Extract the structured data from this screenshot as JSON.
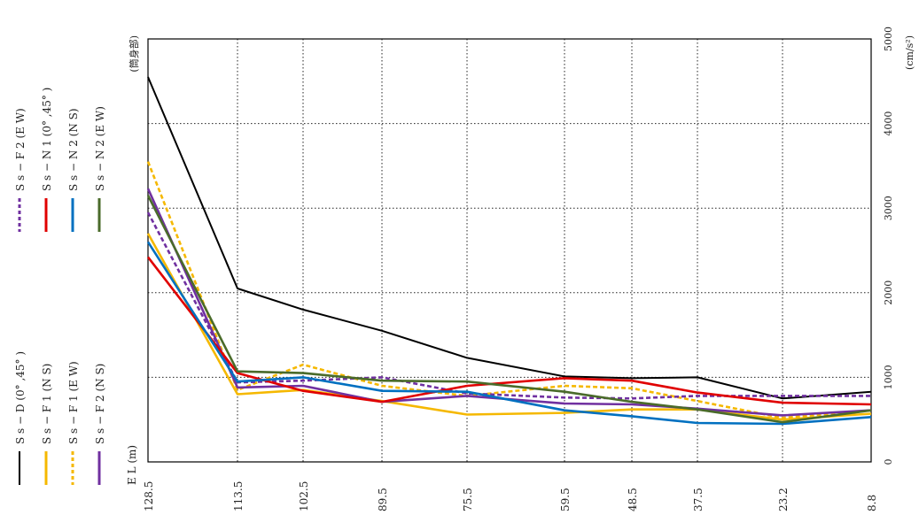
{
  "chart_data": {
    "type": "line",
    "orientation": "rotated",
    "x_axis_label": "E L (m)",
    "x": [
      "128.5",
      "113.5",
      "102.5",
      "89.5",
      "75.5",
      "59.5",
      "48.5",
      "37.5",
      "23.2",
      "8.8"
    ],
    "y_axis_ticks": [
      0,
      1000,
      2000,
      3000,
      4000,
      5000
    ],
    "y_unit": "(cm/s²)",
    "ylim": [
      0,
      5000
    ],
    "section_note": "(筒身部)",
    "grid": true,
    "legend_position": "left",
    "series": [
      {
        "name": "S s − D (0° ,45° )",
        "color": "#000000",
        "dashed": false,
        "values": [
          4550,
          2050,
          1800,
          1550,
          1230,
          1010,
          990,
          1000,
          750,
          830
        ]
      },
      {
        "name": "S s − F 1 (N S)",
        "color": "#f5b800",
        "dashed": false,
        "values": [
          2700,
          800,
          850,
          720,
          560,
          580,
          620,
          620,
          500,
          570
        ]
      },
      {
        "name": "S s − F 1 (E W)",
        "color": "#f5b800",
        "dashed": true,
        "values": [
          3550,
          850,
          1150,
          900,
          780,
          900,
          870,
          720,
          520,
          610
        ]
      },
      {
        "name": "S s − F 2 (N S)",
        "color": "#7030a0",
        "dashed": false,
        "values": [
          3230,
          880,
          900,
          710,
          780,
          690,
          680,
          630,
          550,
          610
        ]
      },
      {
        "name": "S s − F 2 (E W)",
        "color": "#7030a0",
        "dashed": true,
        "values": [
          2950,
          940,
          960,
          1000,
          810,
          760,
          750,
          780,
          780,
          780
        ]
      },
      {
        "name": "S s − N 1 (0° ,45° )",
        "color": "#e00000",
        "dashed": false,
        "values": [
          2420,
          1050,
          840,
          710,
          900,
          990,
          960,
          820,
          700,
          680
        ]
      },
      {
        "name": "S s − N 2 (N S)",
        "color": "#0070c0",
        "dashed": false,
        "values": [
          2600,
          950,
          1000,
          840,
          830,
          610,
          540,
          460,
          450,
          530
        ]
      },
      {
        "name": "S s − N 2 (E W)",
        "color": "#4a6b2a",
        "dashed": false,
        "values": [
          3150,
          1070,
          1050,
          960,
          950,
          830,
          710,
          620,
          470,
          610
        ]
      }
    ]
  }
}
